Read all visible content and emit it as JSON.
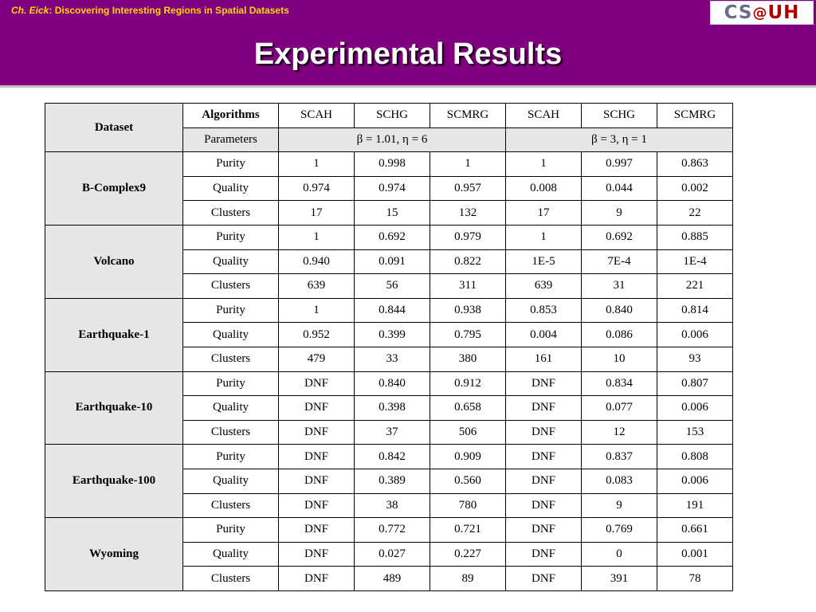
{
  "header": {
    "caption_author": "Ch. Eick",
    "caption_rest": ": Discovering Interesting Regions in Spatial Datasets",
    "logo": {
      "cs": "CS",
      "at": "@",
      "uh": "UH"
    },
    "title": "Experimental Results"
  },
  "table": {
    "dataset_header": "Dataset",
    "algorithms_header": "Algorithms",
    "parameters_header": "Parameters",
    "algorithms": [
      "SCAH",
      "SCHG",
      "SCMRG",
      "SCAH",
      "SCHG",
      "SCMRG"
    ],
    "param_sets": [
      "β = 1.01, η = 6",
      "β = 3, η = 1"
    ],
    "datasets": [
      {
        "name": "B-Complex9",
        "rows": [
          {
            "metric": "Purity",
            "values": [
              "1",
              "0.998",
              "1",
              "1",
              "0.997",
              "0.863"
            ]
          },
          {
            "metric": "Quality",
            "values": [
              "0.974",
              "0.974",
              "0.957",
              "0.008",
              "0.044",
              "0.002"
            ]
          },
          {
            "metric": "Clusters",
            "values": [
              "17",
              "15",
              "132",
              "17",
              "9",
              "22"
            ]
          }
        ]
      },
      {
        "name": "Volcano",
        "rows": [
          {
            "metric": "Purity",
            "values": [
              "1",
              "0.692",
              "0.979",
              "1",
              "0.692",
              "0.885"
            ]
          },
          {
            "metric": "Quality",
            "values": [
              "0.940",
              "0.091",
              "0.822",
              "1E-5",
              "7E-4",
              "1E-4"
            ]
          },
          {
            "metric": "Clusters",
            "values": [
              "639",
              "56",
              "311",
              "639",
              "31",
              "221"
            ]
          }
        ]
      },
      {
        "name": "Earthquake-1",
        "rows": [
          {
            "metric": "Purity",
            "values": [
              "1",
              "0.844",
              "0.938",
              "0.853",
              "0.840",
              "0.814"
            ]
          },
          {
            "metric": "Quality",
            "values": [
              "0.952",
              "0.399",
              "0.795",
              "0.004",
              "0.086",
              "0.006"
            ]
          },
          {
            "metric": "Clusters",
            "values": [
              "479",
              "33",
              "380",
              "161",
              "10",
              "93"
            ]
          }
        ]
      },
      {
        "name": "Earthquake-10",
        "rows": [
          {
            "metric": "Purity",
            "values": [
              "DNF",
              "0.840",
              "0.912",
              "DNF",
              "0.834",
              "0.807"
            ]
          },
          {
            "metric": "Quality",
            "values": [
              "DNF",
              "0.398",
              "0.658",
              "DNF",
              "0.077",
              "0.006"
            ]
          },
          {
            "metric": "Clusters",
            "values": [
              "DNF",
              "37",
              "506",
              "DNF",
              "12",
              "153"
            ]
          }
        ]
      },
      {
        "name": "Earthquake-100",
        "rows": [
          {
            "metric": "Purity",
            "values": [
              "DNF",
              "0.842",
              "0.909",
              "DNF",
              "0.837",
              "0.808"
            ]
          },
          {
            "metric": "Quality",
            "values": [
              "DNF",
              "0.389",
              "0.560",
              "DNF",
              "0.083",
              "0.006"
            ]
          },
          {
            "metric": "Clusters",
            "values": [
              "DNF",
              "38",
              "780",
              "DNF",
              "9",
              "191"
            ]
          }
        ]
      },
      {
        "name": "Wyoming",
        "rows": [
          {
            "metric": "Purity",
            "values": [
              "DNF",
              "0.772",
              "0.721",
              "DNF",
              "0.769",
              "0.661"
            ]
          },
          {
            "metric": "Quality",
            "values": [
              "DNF",
              "0.027",
              "0.227",
              "DNF",
              "0",
              "0.001"
            ]
          },
          {
            "metric": "Clusters",
            "values": [
              "DNF",
              "489",
              "89",
              "DNF",
              "391",
              "78"
            ]
          }
        ]
      }
    ]
  }
}
